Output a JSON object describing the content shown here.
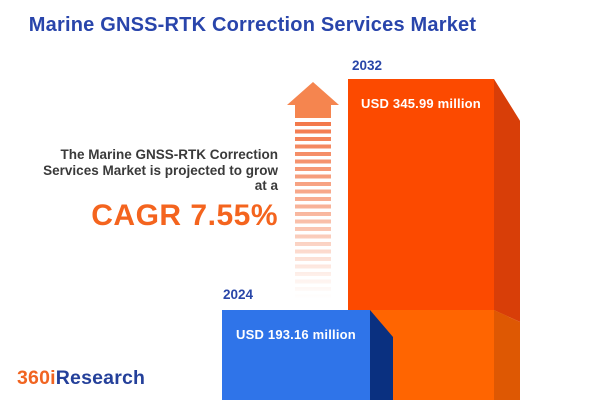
{
  "title": "Marine GNSS-RTK Correction Services Market",
  "insight": {
    "lines": [
      "The Marine GNSS-RTK Correction",
      "Services Market is projected to grow",
      "at a"
    ],
    "cagr": "CAGR 7.55%"
  },
  "bars": [
    {
      "year": "2024",
      "value_label": "USD 193.16 million",
      "front_color": "#2F74E9",
      "side_color": "#0A3080"
    },
    {
      "year": "2032",
      "value_label": "USD 345.99 million",
      "front_color": "#FC4A00",
      "side_color": "#D83E08",
      "base_front_color": "#FF6501",
      "base_side_color": "#DE5803"
    }
  ],
  "chart_data": {
    "type": "bar",
    "title": "Marine GNSS-RTK Correction Services Market",
    "categories": [
      "2024",
      "2032"
    ],
    "values": [
      193.16,
      345.99
    ],
    "unit": "USD million",
    "data_labels": [
      "USD 193.16 million",
      "USD 345.99 million"
    ],
    "cagr_percent": 7.55,
    "legend": "none",
    "grid": false,
    "orientation": "vertical",
    "bar_colors": [
      "#2F74E9",
      "#FC4A00"
    ]
  },
  "logo": {
    "prefix": "360i",
    "suffix": "Research"
  },
  "colors": {
    "title_blue": "#2945AB",
    "accent_orange": "#F4641E",
    "bar_2024_front": "#2F74E9",
    "bar_2024_side": "#0A3080",
    "bar_2032_front": "#FC4A00",
    "bar_2032_side": "#D83E08",
    "bar_2032_base_front": "#FF6501",
    "bar_2032_base_side": "#DE5803",
    "arrow_orange": "#F5854F",
    "text_dark": "#3A3A3A",
    "logo_orange": "#F16522",
    "logo_blue": "#24409A"
  }
}
